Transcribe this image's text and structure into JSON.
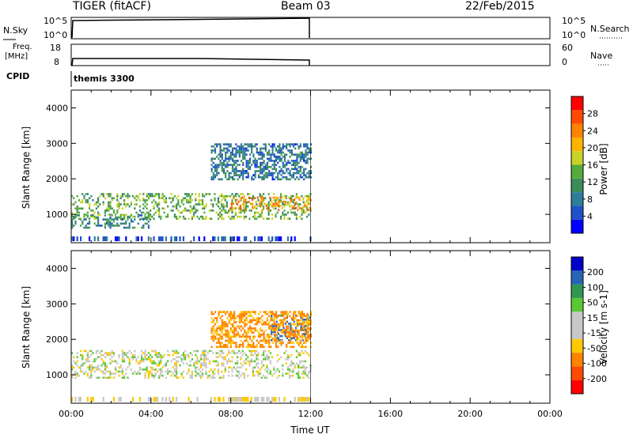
{
  "header": {
    "title": "TIGER (fitACF)",
    "beam": "Beam 03",
    "date": "22/Feb/2015"
  },
  "panels": {
    "nsky": {
      "left_label": "N.Sky",
      "left_ticks": [
        "10^5",
        "10^0"
      ],
      "right_ticks": [
        "10^5",
        "10^0"
      ],
      "right_label": "N.Search"
    },
    "freq": {
      "left_label_line1": "Freq.",
      "left_label_line2": "[MHz]",
      "left_ticks": [
        "18",
        "8"
      ],
      "right_ticks": [
        "60",
        "0"
      ],
      "right_label": "Nave"
    },
    "cpid": {
      "label": "CPID",
      "value": "themis 3300"
    }
  },
  "chart_data": [
    {
      "type": "heatmap",
      "title": "",
      "ylabel": "Slant Range [km]",
      "xlabel": "",
      "ylim": [
        200,
        4500
      ],
      "yticks": [
        "4000",
        "3000",
        "2000",
        "1000"
      ],
      "xlim": [
        0,
        24
      ],
      "data_coverage_hours": [
        0,
        12
      ],
      "colorbar": {
        "label": "Power [dB]",
        "ticks": [
          "28",
          "24",
          "20",
          "16",
          "12",
          "8",
          "4"
        ],
        "colors": [
          "#0000ff",
          "#1e50c8",
          "#2e7d9a",
          "#3c8c5a",
          "#55aa3c",
          "#c8d228",
          "#ffb400",
          "#ff8200",
          "#ff4b00",
          "#ff0000"
        ]
      },
      "bands": [
        {
          "range_km": [
            900,
            1600
          ],
          "hours": [
            0,
            12
          ],
          "typical_db": 14
        },
        {
          "range_km": [
            1100,
            1500
          ],
          "hours": [
            8,
            12
          ],
          "typical_db": 22
        },
        {
          "range_km": [
            600,
            1000
          ],
          "hours": [
            0,
            4
          ],
          "typical_db": 10
        },
        {
          "range_km": [
            2000,
            3000
          ],
          "hours": [
            7,
            12
          ],
          "typical_db": 8
        }
      ]
    },
    {
      "type": "heatmap",
      "title": "",
      "ylabel": "Slant Range [km]",
      "xlabel": "Time UT",
      "ylim": [
        200,
        4500
      ],
      "yticks": [
        "4000",
        "3000",
        "2000",
        "1000"
      ],
      "xlim": [
        0,
        24
      ],
      "xticks": [
        "00:00",
        "04:00",
        "08:00",
        "12:00",
        "16:00",
        "20:00",
        "00:00"
      ],
      "data_coverage_hours": [
        0,
        12
      ],
      "colorbar": {
        "label": "Velocity [m s-1]",
        "ticks": [
          "200",
          "100",
          "50",
          "15",
          "-15",
          "-50",
          "-100",
          "-200"
        ],
        "colors": [
          "#ff0000",
          "#ff4b00",
          "#ff8200",
          "#ffc800",
          "#c8c8c8",
          "#c8c8c8",
          "#5ac832",
          "#329650",
          "#2864b4",
          "#0000c8"
        ]
      },
      "bands": [
        {
          "range_km": [
            900,
            1700
          ],
          "hours": [
            0,
            12
          ],
          "typical_velocity": 0
        },
        {
          "range_km": [
            2000,
            2700
          ],
          "hours": [
            10,
            12
          ],
          "typical_velocity": 150
        },
        {
          "range_km": [
            1800,
            2800
          ],
          "hours": [
            7,
            12
          ],
          "typical_velocity": -60
        }
      ]
    }
  ]
}
